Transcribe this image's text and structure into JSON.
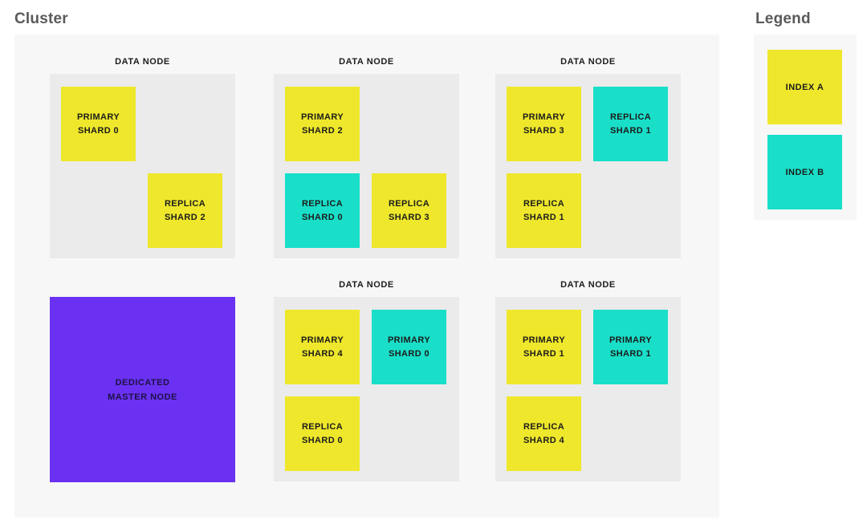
{
  "cluster": {
    "title": "Cluster",
    "node_label": "DATA NODE",
    "nodes": [
      {
        "row": 1,
        "col": 1,
        "shards": [
          {
            "lines": [
              "PRIMARY",
              "SHARD 0"
            ],
            "index": "A",
            "slot": "tl"
          },
          {
            "lines": [
              "REPLICA",
              "SHARD 2"
            ],
            "index": "A",
            "slot": "br"
          }
        ]
      },
      {
        "row": 1,
        "col": 2,
        "shards": [
          {
            "lines": [
              "PRIMARY",
              "SHARD 2"
            ],
            "index": "A",
            "slot": "tl"
          },
          {
            "lines": [
              "REPLICA",
              "SHARD 0"
            ],
            "index": "B",
            "slot": "bl"
          },
          {
            "lines": [
              "REPLICA",
              "SHARD 3"
            ],
            "index": "A",
            "slot": "br"
          }
        ]
      },
      {
        "row": 1,
        "col": 3,
        "shards": [
          {
            "lines": [
              "PRIMARY",
              "SHARD 3"
            ],
            "index": "A",
            "slot": "tl"
          },
          {
            "lines": [
              "REPLICA",
              "SHARD 1"
            ],
            "index": "B",
            "slot": "tr"
          },
          {
            "lines": [
              "REPLICA",
              "SHARD 1"
            ],
            "index": "A",
            "slot": "bl"
          }
        ]
      },
      {
        "row": 2,
        "col": 2,
        "shards": [
          {
            "lines": [
              "PRIMARY",
              "SHARD 4"
            ],
            "index": "A",
            "slot": "tl"
          },
          {
            "lines": [
              "PRIMARY",
              "SHARD 0"
            ],
            "index": "B",
            "slot": "tr"
          },
          {
            "lines": [
              "REPLICA",
              "SHARD 0"
            ],
            "index": "A",
            "slot": "bl"
          }
        ]
      },
      {
        "row": 2,
        "col": 3,
        "shards": [
          {
            "lines": [
              "PRIMARY",
              "SHARD 1"
            ],
            "index": "A",
            "slot": "tl"
          },
          {
            "lines": [
              "PRIMARY",
              "SHARD 1"
            ],
            "index": "B",
            "slot": "tr"
          },
          {
            "lines": [
              "REPLICA",
              "SHARD 4"
            ],
            "index": "A",
            "slot": "bl"
          }
        ]
      }
    ],
    "master_node": {
      "lines": [
        "DEDICATED",
        "MASTER NODE"
      ]
    }
  },
  "legend": {
    "title": "Legend",
    "items": [
      {
        "label": "INDEX A",
        "index": "A"
      },
      {
        "label": "INDEX B",
        "index": "B"
      }
    ]
  },
  "colors": {
    "index_a": "#efe72b",
    "index_b": "#19dfc9",
    "master": "#6a31f2",
    "cluster_background": "#f7f7f7",
    "node_background": "#ebebeb",
    "title_text": "#5a5a5a",
    "label_text": "#1c1c1c"
  }
}
